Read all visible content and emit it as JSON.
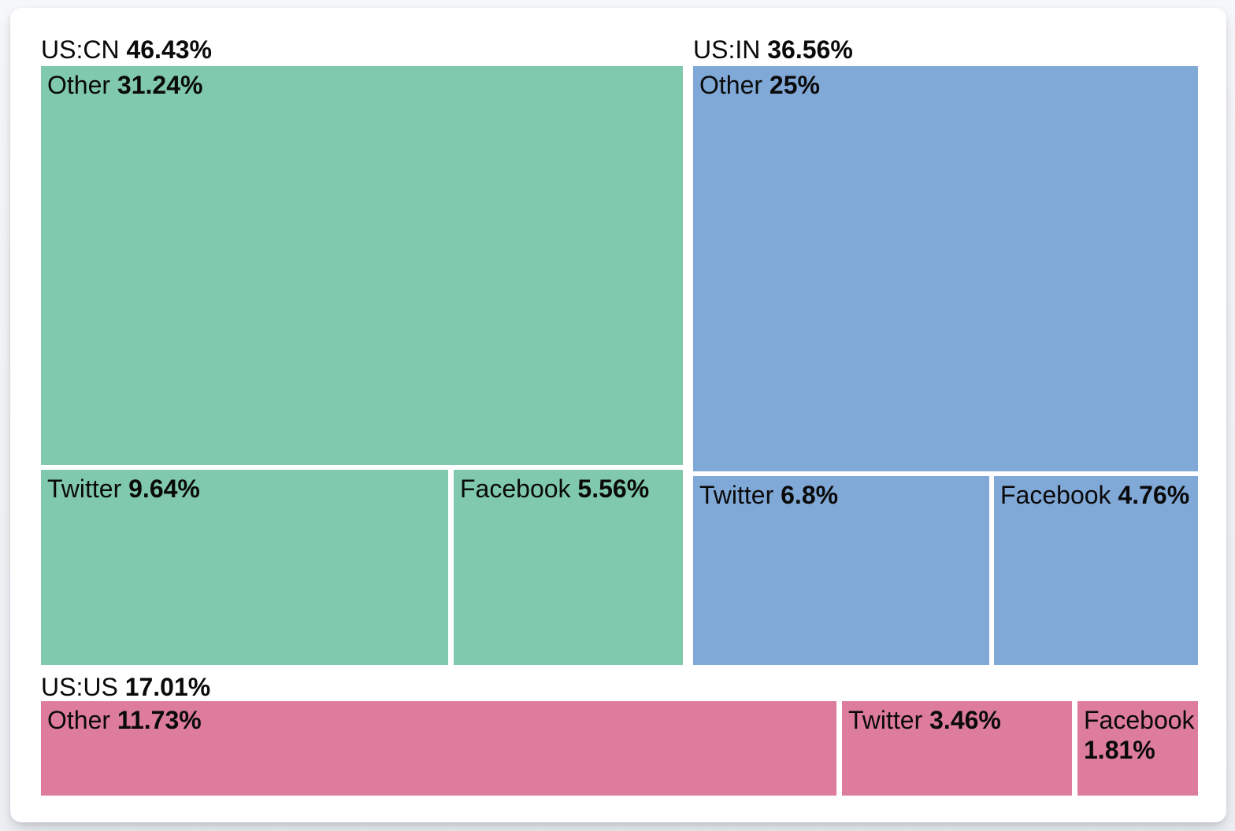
{
  "chart_data": {
    "type": "treemap",
    "title": "",
    "unit": "%",
    "legend_position": "none",
    "groups": [
      {
        "name": "US:CN",
        "value": 46.43,
        "value_label": "46.43%",
        "color": "#80c9ac",
        "children": [
          {
            "name": "Other",
            "value": 31.24,
            "value_label": "31.24%"
          },
          {
            "name": "Twitter",
            "value": 9.64,
            "value_label": "9.64%"
          },
          {
            "name": "Facebook",
            "value": 5.56,
            "value_label": "5.56%"
          }
        ]
      },
      {
        "name": "US:IN",
        "value": 36.56,
        "value_label": "36.56%",
        "color": "#81a9d8",
        "children": [
          {
            "name": "Other",
            "value": 25,
            "value_label": "25%"
          },
          {
            "name": "Twitter",
            "value": 6.8,
            "value_label": "6.8%"
          },
          {
            "name": "Facebook",
            "value": 4.76,
            "value_label": "4.76%"
          }
        ]
      },
      {
        "name": "US:US",
        "value": 17.01,
        "value_label": "17.01%",
        "color": "#de7c9d",
        "children": [
          {
            "name": "Other",
            "value": 11.73,
            "value_label": "11.73%"
          },
          {
            "name": "Twitter",
            "value": 3.46,
            "value_label": "3.46%"
          },
          {
            "name": "Facebook",
            "value": 1.81,
            "value_label": "1.81%"
          }
        ]
      }
    ]
  }
}
